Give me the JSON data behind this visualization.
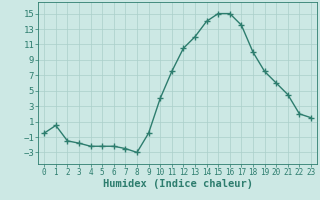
{
  "x": [
    0,
    1,
    2,
    3,
    4,
    5,
    6,
    7,
    8,
    9,
    10,
    11,
    12,
    13,
    14,
    15,
    16,
    17,
    18,
    19,
    20,
    21,
    22,
    23
  ],
  "y": [
    -0.5,
    0.5,
    -1.5,
    -1.8,
    -2.2,
    -2.2,
    -2.2,
    -2.5,
    -3.0,
    -0.5,
    4.0,
    7.5,
    10.5,
    12.0,
    14.0,
    15.0,
    15.0,
    13.5,
    10.0,
    7.5,
    6.0,
    4.5,
    2.0,
    1.5
  ],
  "line_color": "#2d7d6e",
  "marker": "+",
  "marker_color": "#2d7d6e",
  "bg_color": "#cce8e4",
  "grid_color": "#aacfca",
  "xlabel": "Humidex (Indice chaleur)",
  "ylabel": "",
  "title": "",
  "yticks": [
    -3,
    -1,
    1,
    3,
    5,
    7,
    9,
    11,
    13,
    15
  ],
  "ylim": [
    -4.5,
    16.5
  ],
  "xlim": [
    -0.5,
    23.5
  ],
  "xtick_labels": [
    "0",
    "1",
    "2",
    "3",
    "4",
    "5",
    "6",
    "7",
    "8",
    "9",
    "10",
    "11",
    "12",
    "13",
    "14",
    "15",
    "16",
    "17",
    "18",
    "19",
    "20",
    "21",
    "22",
    "23"
  ],
  "xlabel_fontsize": 7.5,
  "ytick_fontsize": 6.5,
  "xtick_fontsize": 5.5,
  "line_width": 1.0,
  "marker_size": 4
}
